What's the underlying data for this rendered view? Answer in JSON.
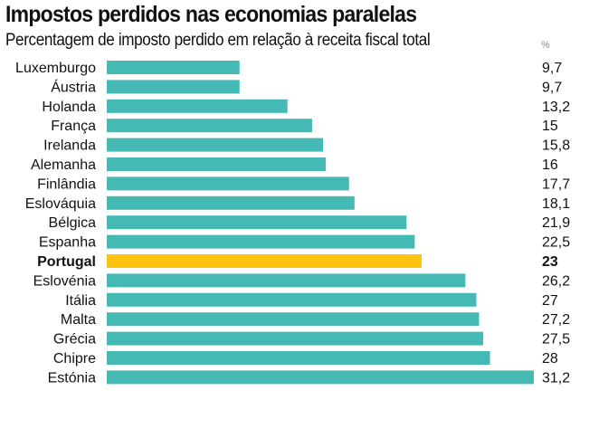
{
  "chart_data": {
    "type": "bar",
    "orientation": "horizontal",
    "title": "Impostos perdidos nas economias paralelas",
    "subtitle": "Percentagem de imposto perdido em relação à receita fiscal total",
    "unit": "%",
    "categories": [
      "Luxemburgo",
      "Áustria",
      "Holanda",
      "França",
      "Irelanda",
      "Alemanha",
      "Finlândia",
      "Eslováquia",
      "Bélgica",
      "Espanha",
      "Portugal",
      "Eslovénia",
      "Itália",
      "Malta",
      "Grécia",
      "Chipre",
      "Estónia"
    ],
    "values": [
      9.7,
      9.7,
      13.2,
      15,
      15.8,
      16,
      17.7,
      18.1,
      21.9,
      22.5,
      23,
      26.2,
      27,
      27.2,
      27.5,
      28,
      31.2
    ],
    "value_labels": [
      "9,7",
      "9,7",
      "13,2",
      "15",
      "15,8",
      "16",
      "17,7",
      "18,1",
      "21,9",
      "22,5",
      "23",
      "26,2",
      "27",
      "27,2",
      "27,5",
      "28",
      "31,2"
    ],
    "highlight": "Portugal",
    "colors": {
      "bar": "#45bab5",
      "highlight": "#ffc20e"
    },
    "xlim": [
      0,
      31.2
    ],
    "grid": false
  }
}
